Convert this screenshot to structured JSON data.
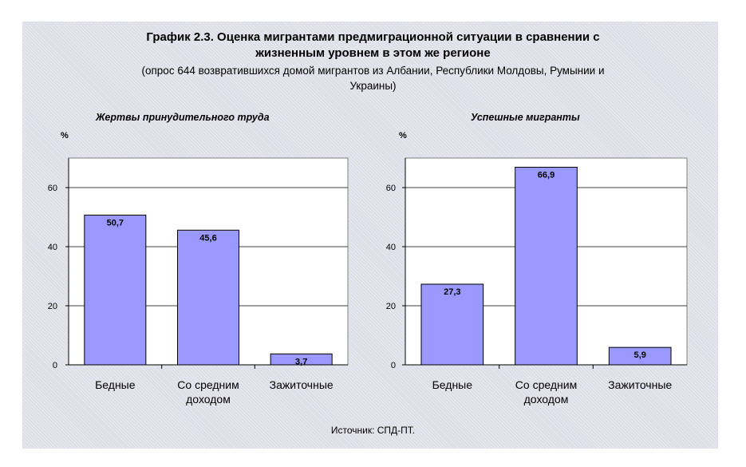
{
  "title_line1": "График 2.3. Оценка мигрантами предмиграционной ситуации в сравнении с",
  "title_line2": "жизненным уровнем в этом же регионе",
  "subtitle_line1": "(опрос 644 возвратившихся домой мигрантов из Албании, Республики Молдовы, Румынии и",
  "subtitle_line2": "Украины)",
  "source": "Источник: СПД-ПТ.",
  "colors": {
    "bar": "#9999ff",
    "bar_stroke": "#000000",
    "plot_bg": "#ffffff",
    "grid": "#000000"
  },
  "chart_data": [
    {
      "type": "bar",
      "title": "Жертвы принудительного труда",
      "ylabel": "%",
      "categories": [
        [
          "Бедные"
        ],
        [
          "Со средним",
          "доходом"
        ],
        [
          "Зажиточные"
        ]
      ],
      "values": [
        50.7,
        45.6,
        3.7
      ],
      "value_labels": [
        "50,7",
        "45,6",
        "3,7"
      ],
      "yticks": [
        0,
        20,
        40,
        60
      ],
      "ylim": [
        0,
        70
      ],
      "grid": true,
      "legend": "none"
    },
    {
      "type": "bar",
      "title": "Успешные мигранты",
      "ylabel": "%",
      "categories": [
        [
          "Бедные"
        ],
        [
          "Со средним",
          "доходом"
        ],
        [
          "Зажиточные"
        ]
      ],
      "values": [
        27.3,
        66.9,
        5.9
      ],
      "value_labels": [
        "27,3",
        "66,9",
        "5,9"
      ],
      "yticks": [
        0,
        20,
        40,
        60
      ],
      "ylim": [
        0,
        70
      ],
      "grid": true,
      "legend": "none"
    }
  ]
}
